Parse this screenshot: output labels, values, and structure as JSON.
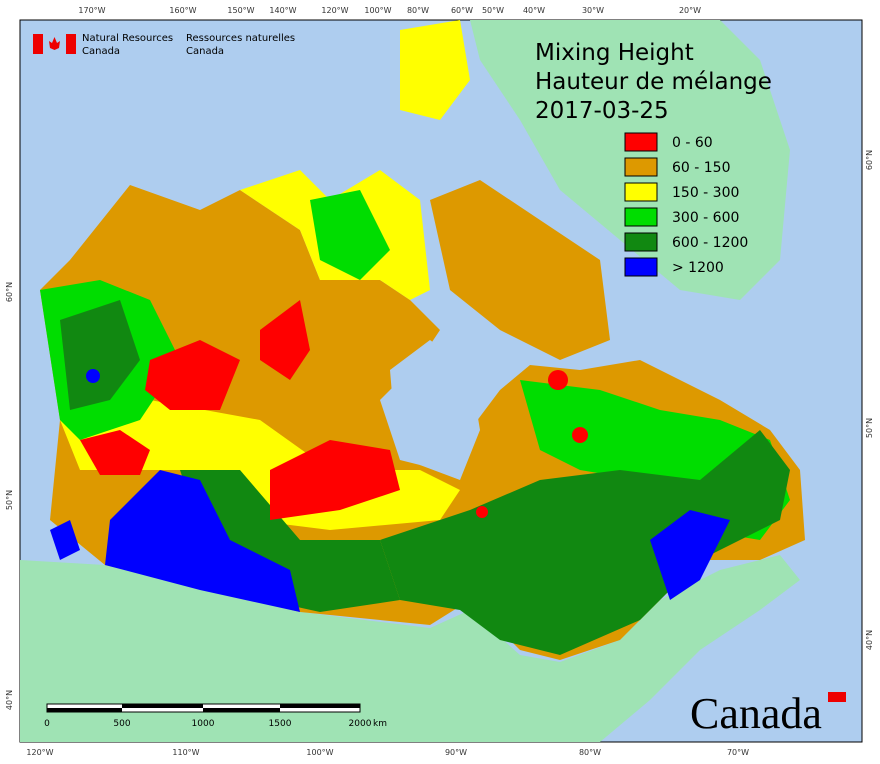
{
  "agency": {
    "en": [
      "Natural Resources",
      "Canada"
    ],
    "fr": [
      "Ressources naturelles",
      "Canada"
    ]
  },
  "title": [
    "Mixing Height",
    "Hauteur de mélange",
    "2017-03-25"
  ],
  "legend": [
    {
      "label": "0 - 60",
      "color": "#ff0000"
    },
    {
      "label": "60 - 150",
      "color": "#dd9900"
    },
    {
      "label": "150 - 300",
      "color": "#ffff00"
    },
    {
      "label": "300 - 600",
      "color": "#00dd00"
    },
    {
      "label": "600 - 1200",
      "color": "#118811"
    },
    {
      "label": "> 1200",
      "color": "#0000ff"
    }
  ],
  "top_labels": [
    "170°W",
    "160°W",
    "150°W",
    "140°W",
    "120°W",
    "100°W",
    "80°W",
    "60°W",
    "50°W",
    "40°W",
    "30°W",
    "20°W"
  ],
  "bottom_labels": [
    "120°W",
    "110°W",
    "100°W",
    "90°W",
    "80°W",
    "70°W"
  ],
  "left_labels": [
    "60°N",
    "50°N",
    "40°N"
  ],
  "right_labels": [
    "60°N",
    "50°N",
    "40°N"
  ],
  "scale": {
    "labels": [
      "0",
      "500",
      "1000",
      "1500",
      "2000"
    ],
    "unit": "km"
  },
  "wordmark": "Canada"
}
